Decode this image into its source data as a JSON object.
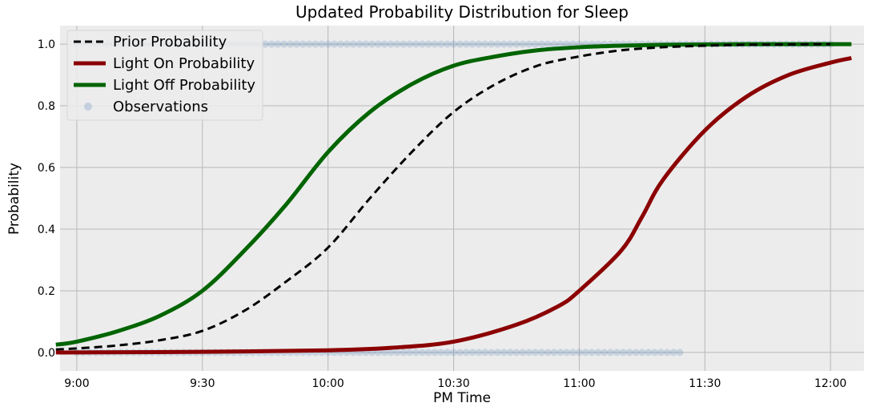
{
  "chart_data": {
    "type": "line",
    "title": "Updated Probability Distribution for Sleep",
    "xlabel": "PM Time",
    "ylabel": "Probability",
    "x_unit": "clock time PM",
    "xlim": [
      "8:56",
      "12:08"
    ],
    "ylim": [
      -0.06,
      1.06
    ],
    "xticks": [
      "9:00",
      "9:30",
      "10:00",
      "10:30",
      "11:00",
      "11:30",
      "12:00"
    ],
    "yticks": [
      0.0,
      0.2,
      0.4,
      0.6,
      0.8,
      1.0
    ],
    "grid": true,
    "background": "#ececec",
    "legend_position": "top-left",
    "series": [
      {
        "name": "Prior Probability",
        "style": "dashed",
        "color": "#000000",
        "x": [
          "8:55",
          "9:00",
          "9:10",
          "9:20",
          "9:30",
          "9:40",
          "9:50",
          "10:00",
          "10:10",
          "10:20",
          "10:30",
          "10:40",
          "10:50",
          "11:00",
          "11:10",
          "11:20",
          "11:30",
          "11:40",
          "11:50",
          "12:00"
        ],
        "y": [
          0.01,
          0.013,
          0.023,
          0.04,
          0.07,
          0.135,
          0.23,
          0.34,
          0.5,
          0.65,
          0.78,
          0.87,
          0.93,
          0.96,
          0.98,
          0.99,
          0.995,
          0.998,
          0.999,
          1.0
        ]
      },
      {
        "name": "Light On Probability",
        "style": "solid",
        "color": "#8b0000",
        "x": [
          "8:55",
          "9:00",
          "9:30",
          "10:00",
          "10:15",
          "10:30",
          "10:45",
          "10:55",
          "11:00",
          "11:10",
          "11:15",
          "11:20",
          "11:30",
          "11:40",
          "11:50",
          "12:00",
          "12:05"
        ],
        "y": [
          0.0,
          0.0,
          0.002,
          0.007,
          0.015,
          0.035,
          0.09,
          0.15,
          0.2,
          0.33,
          0.44,
          0.56,
          0.72,
          0.83,
          0.9,
          0.94,
          0.955
        ]
      },
      {
        "name": "Light Off Probability",
        "style": "solid",
        "color": "#006400",
        "x": [
          "8:55",
          "9:00",
          "9:10",
          "9:20",
          "9:30",
          "9:40",
          "9:50",
          "10:00",
          "10:10",
          "10:20",
          "10:30",
          "10:40",
          "10:50",
          "11:00",
          "11:10",
          "11:20",
          "11:30",
          "11:40",
          "11:50",
          "12:00",
          "12:05"
        ],
        "y": [
          0.025,
          0.035,
          0.07,
          0.12,
          0.2,
          0.33,
          0.48,
          0.65,
          0.78,
          0.87,
          0.93,
          0.96,
          0.98,
          0.99,
          0.995,
          0.998,
          0.999,
          1.0,
          1.0,
          1.0,
          1.0
        ]
      },
      {
        "name": "Observations",
        "style": "scatter",
        "color": "#4a7ab8",
        "groups": [
          {
            "y": 1.0,
            "x_start": "9:00",
            "x_end": "12:00"
          },
          {
            "y": 0.0,
            "x_start": "9:00",
            "x_end": "11:25"
          }
        ]
      }
    ]
  }
}
